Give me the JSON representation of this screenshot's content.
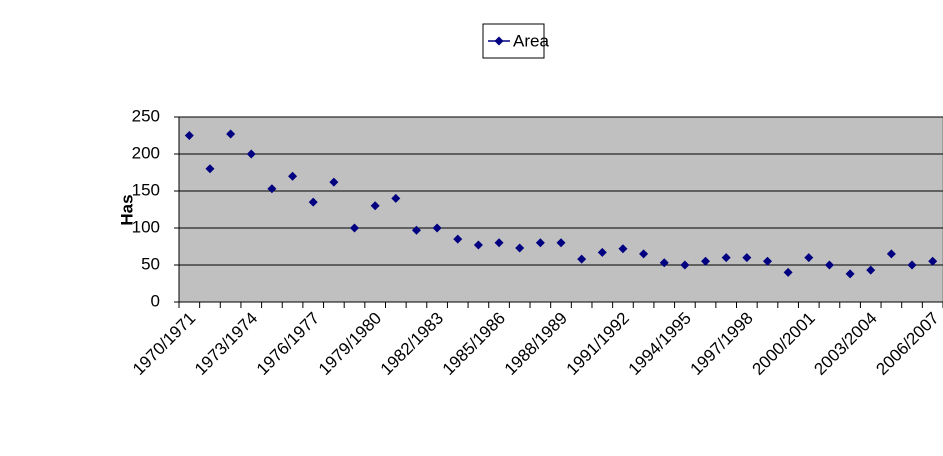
{
  "chart_data": {
    "type": "line",
    "ylabel": "Has",
    "categories": [
      "1970/1971",
      null,
      null,
      "1973/1974",
      null,
      null,
      "1976/1977",
      null,
      null,
      "1979/1980",
      null,
      null,
      "1982/1983",
      null,
      null,
      "1985/1986",
      null,
      null,
      "1988/1989",
      null,
      null,
      "1991/1992",
      null,
      null,
      "1994/1995",
      null,
      null,
      "1997/1998",
      null,
      null,
      "2000/2001",
      null,
      null,
      "2003/2004",
      null,
      null,
      "2006/2007"
    ],
    "series": [
      {
        "name": "Area",
        "color": "#000080",
        "values": [
          225,
          180,
          227,
          200,
          153,
          170,
          135,
          162,
          100,
          130,
          140,
          97,
          100,
          85,
          77,
          80,
          73,
          80,
          80,
          58,
          67,
          72,
          65,
          53,
          50,
          55,
          60,
          60,
          55,
          40,
          60,
          50,
          38,
          43,
          65,
          50,
          55
        ]
      }
    ],
    "ylim": [
      0,
      250
    ],
    "yticks": [
      0,
      50,
      100,
      150,
      200,
      250
    ],
    "grid": true,
    "legend": "top"
  }
}
